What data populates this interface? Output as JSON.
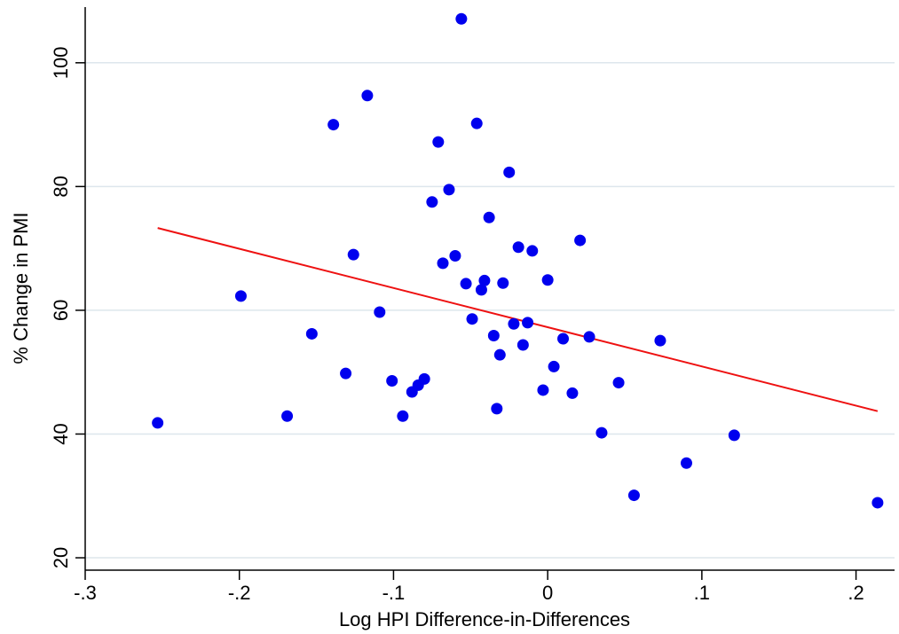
{
  "chart_data": {
    "type": "scatter",
    "title": "",
    "xlabel": "Log HPI Difference-in-Differences",
    "ylabel": "% Change in PMI",
    "xlim": [
      -0.3,
      0.225
    ],
    "ylim": [
      18,
      109
    ],
    "x_ticks": [
      -0.3,
      -0.2,
      -0.1,
      0,
      0.1,
      0.2
    ],
    "x_tick_labels": [
      "-.3",
      "-.2",
      "-.1",
      "0",
      ".1",
      ".2"
    ],
    "y_ticks": [
      20,
      40,
      60,
      80,
      100
    ],
    "y_tick_labels": [
      "20",
      "40",
      "60",
      "80",
      "100"
    ],
    "grid": "horizontal",
    "colors": {
      "points": "#0000ee",
      "fit_line": "#ee1111",
      "grid": "#dde6ec",
      "axis": "#000000"
    },
    "series": [
      {
        "type": "scatter",
        "points": [
          {
            "x": -0.253,
            "y": 41.8
          },
          {
            "x": -0.199,
            "y": 62.3
          },
          {
            "x": -0.169,
            "y": 42.9
          },
          {
            "x": -0.153,
            "y": 56.2
          },
          {
            "x": -0.139,
            "y": 90.0
          },
          {
            "x": -0.131,
            "y": 49.8
          },
          {
            "x": -0.126,
            "y": 69.0
          },
          {
            "x": -0.117,
            "y": 94.7
          },
          {
            "x": -0.109,
            "y": 59.7
          },
          {
            "x": -0.101,
            "y": 48.6
          },
          {
            "x": -0.094,
            "y": 42.9
          },
          {
            "x": -0.088,
            "y": 46.8
          },
          {
            "x": -0.084,
            "y": 47.9
          },
          {
            "x": -0.08,
            "y": 48.9
          },
          {
            "x": -0.075,
            "y": 77.5
          },
          {
            "x": -0.071,
            "y": 87.2
          },
          {
            "x": -0.068,
            "y": 67.6
          },
          {
            "x": -0.064,
            "y": 79.5
          },
          {
            "x": -0.06,
            "y": 68.8
          },
          {
            "x": -0.056,
            "y": 107.1
          },
          {
            "x": -0.053,
            "y": 64.3
          },
          {
            "x": -0.049,
            "y": 58.6
          },
          {
            "x": -0.046,
            "y": 90.2
          },
          {
            "x": -0.043,
            "y": 63.3
          },
          {
            "x": -0.041,
            "y": 64.8
          },
          {
            "x": -0.038,
            "y": 75.0
          },
          {
            "x": -0.035,
            "y": 55.9
          },
          {
            "x": -0.033,
            "y": 44.1
          },
          {
            "x": -0.031,
            "y": 52.8
          },
          {
            "x": -0.029,
            "y": 64.4
          },
          {
            "x": -0.025,
            "y": 82.3
          },
          {
            "x": -0.022,
            "y": 57.8
          },
          {
            "x": -0.019,
            "y": 70.2
          },
          {
            "x": -0.016,
            "y": 54.4
          },
          {
            "x": -0.013,
            "y": 58.0
          },
          {
            "x": -0.01,
            "y": 69.6
          },
          {
            "x": -0.003,
            "y": 47.1
          },
          {
            "x": 0.0,
            "y": 64.9
          },
          {
            "x": 0.004,
            "y": 50.9
          },
          {
            "x": 0.01,
            "y": 55.4
          },
          {
            "x": 0.016,
            "y": 46.6
          },
          {
            "x": 0.021,
            "y": 71.3
          },
          {
            "x": 0.027,
            "y": 55.7
          },
          {
            "x": 0.035,
            "y": 40.2
          },
          {
            "x": 0.046,
            "y": 48.3
          },
          {
            "x": 0.056,
            "y": 30.1
          },
          {
            "x": 0.073,
            "y": 55.1
          },
          {
            "x": 0.09,
            "y": 35.3
          },
          {
            "x": 0.121,
            "y": 39.8
          },
          {
            "x": 0.214,
            "y": 28.9
          }
        ]
      },
      {
        "type": "line",
        "points": [
          {
            "x": -0.253,
            "y": 73.3
          },
          {
            "x": 0.214,
            "y": 43.7
          }
        ]
      }
    ]
  }
}
